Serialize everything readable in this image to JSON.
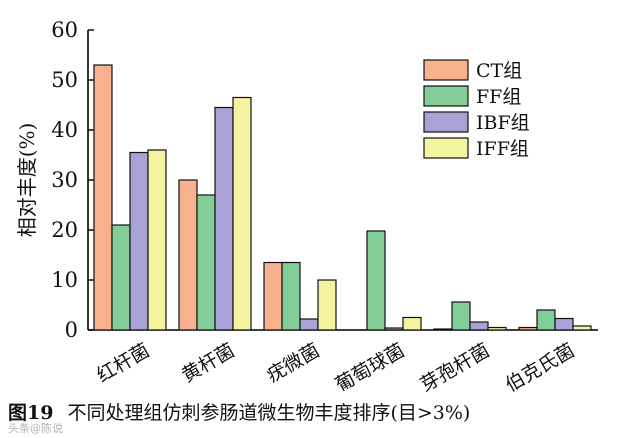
{
  "chart_data": {
    "type": "bar",
    "ylabel": "相对丰度(%)",
    "ylim": [
      0,
      60
    ],
    "yticks": [
      0,
      10,
      20,
      30,
      40,
      50,
      60
    ],
    "categories": [
      "红杆菌",
      "黄杆菌",
      "疣微菌",
      "葡萄球菌",
      "芽孢杆菌",
      "伯克氏菌"
    ],
    "series": [
      {
        "name": "CT组",
        "color": "#f7b18f",
        "values": [
          53,
          30,
          13.5,
          0,
          0.2,
          0.5
        ]
      },
      {
        "name": "FF组",
        "color": "#82cd98",
        "values": [
          21,
          27,
          13.5,
          19.8,
          5.6,
          4
        ]
      },
      {
        "name": "IBF组",
        "color": "#a9a2d6",
        "values": [
          35.5,
          44.5,
          2.2,
          0.4,
          1.6,
          2.3
        ]
      },
      {
        "name": "IFF组",
        "color": "#f3f3a0",
        "values": [
          36,
          46.5,
          10,
          2.5,
          0.5,
          0.8
        ]
      }
    ],
    "legend_position": "top-right",
    "grid": false
  },
  "caption": {
    "number": "图19",
    "text": "不同处理组仿刺参肠道微生物丰度排序(目>3%)"
  },
  "watermark": "头条@陈说"
}
